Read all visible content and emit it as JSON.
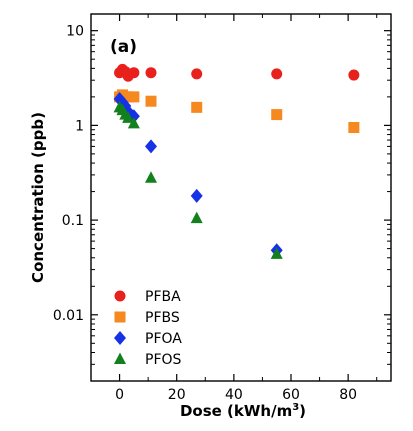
{
  "chart_data": {
    "type": "scatter",
    "panel_label": "(a)",
    "xlabel": "Dose (kWh/m",
    "xlabel_sup": "3",
    "xlabel_end": ")",
    "ylabel": "Concentration (ppb)",
    "y_scale": "log",
    "xlim": [
      -10,
      95
    ],
    "ylim": [
      0.002,
      15
    ],
    "x_ticks": [
      0,
      20,
      40,
      60,
      80
    ],
    "x_tick_labels": [
      "0",
      "20",
      "40",
      "60",
      "80"
    ],
    "y_ticks": [
      10,
      1,
      0.1,
      0.01
    ],
    "y_tick_labels": [
      "10",
      "1",
      "0.1",
      "0.01"
    ],
    "grid": false,
    "legend_position": "bottom-left",
    "series": [
      {
        "name": "PFBA",
        "marker": "circle",
        "color": "#e8211d",
        "x": [
          0,
          1,
          2,
          3,
          5,
          11,
          27,
          55,
          82
        ],
        "y": [
          3.6,
          3.9,
          3.7,
          3.3,
          3.6,
          3.6,
          3.5,
          3.5,
          3.4
        ]
      },
      {
        "name": "PFBS",
        "marker": "square",
        "color": "#f5891f",
        "x": [
          0,
          1,
          2,
          3,
          5,
          11,
          27,
          55,
          82
        ],
        "y": [
          2.0,
          2.1,
          2.0,
          2.0,
          2.0,
          1.8,
          1.55,
          1.3,
          0.95
        ]
      },
      {
        "name": "PFOA",
        "marker": "diamond",
        "color": "#1732e6",
        "x": [
          0,
          1,
          2,
          3,
          5,
          11,
          27,
          55
        ],
        "y": [
          1.9,
          1.75,
          1.6,
          1.4,
          1.25,
          0.6,
          0.18,
          0.048
        ]
      },
      {
        "name": "PFOS",
        "marker": "triangle",
        "color": "#11801d",
        "x": [
          0,
          1,
          2,
          3,
          5,
          11,
          27,
          55
        ],
        "y": [
          1.55,
          1.45,
          1.3,
          1.2,
          1.05,
          0.28,
          0.105,
          0.044
        ]
      }
    ]
  }
}
